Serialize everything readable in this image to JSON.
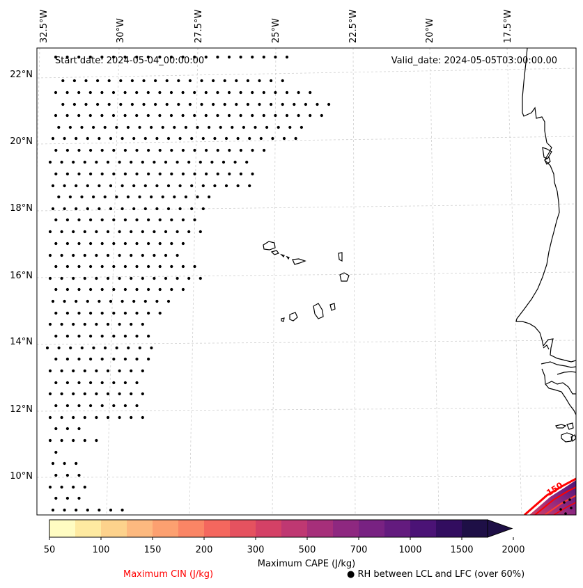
{
  "map": {
    "start_date": "Start date: 2024-05-04_00:00:00",
    "valid_date": "Valid_date: 2024-05-05T03:00:00.00",
    "lon_labels": [
      "32.5°W",
      "30°W",
      "27.5°W",
      "25°W",
      "22.5°W",
      "20°W",
      "17.5°W"
    ],
    "lat_labels": [
      "22°N",
      "20°N",
      "18°N",
      "16°N",
      "14°N",
      "12°N",
      "10°N"
    ],
    "cin_contour_label": "150"
  },
  "colorbar": {
    "title": "Maximum CAPE (J/kg)",
    "tick_labels": [
      "50",
      "100",
      "150",
      "200",
      "300",
      "500",
      "700",
      "1000",
      "1500",
      "2000"
    ],
    "colors": [
      "#fffcc2",
      "#feeaa1",
      "#fdd28c",
      "#fdb97f",
      "#fca070",
      "#fa8565",
      "#f4675e",
      "#e5525f",
      "#d44166",
      "#bf3872",
      "#a62f7a",
      "#8e2880",
      "#782282",
      "#631b7e",
      "#4b1376",
      "#320d5f",
      "#1e0f46"
    ]
  },
  "legend": {
    "cin_label": "Maximum CIN (J/kg)",
    "cin_color": "#ff0000",
    "rh_label": "RH between LCL and LFC (over 60%)",
    "rh_marker": "●"
  }
}
